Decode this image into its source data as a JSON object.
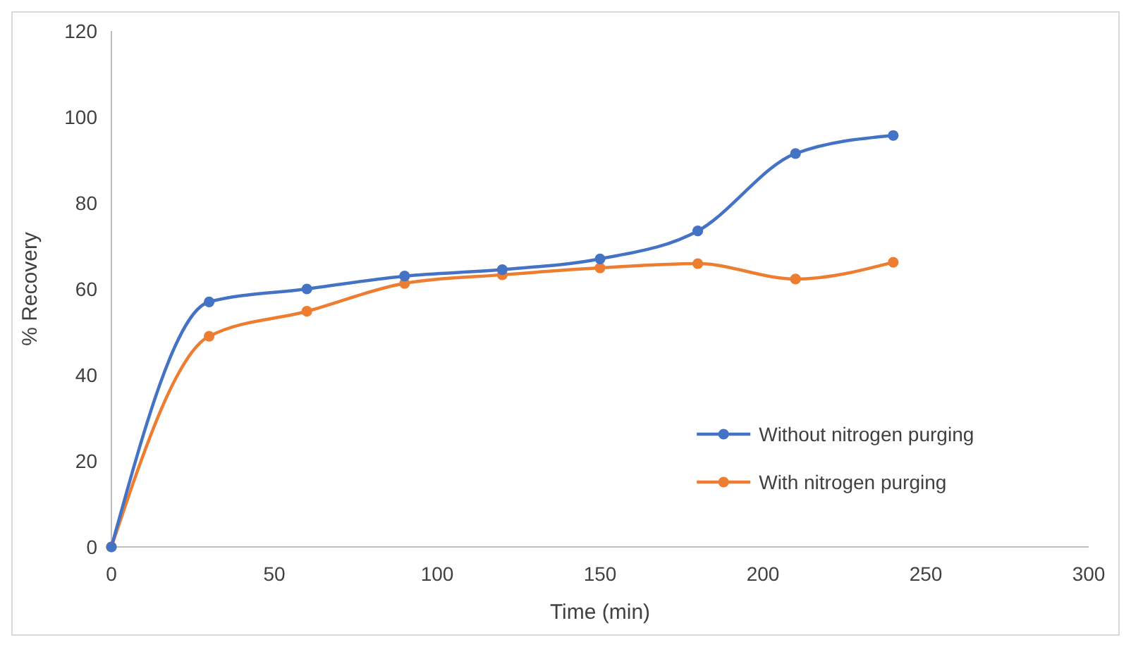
{
  "chart_data": {
    "type": "line",
    "xlabel": "Time (min)",
    "ylabel": "% Recovery",
    "x": [
      0,
      30,
      60,
      90,
      120,
      150,
      180,
      210,
      240
    ],
    "series": [
      {
        "name": "Without nitrogen purging",
        "color": "#4472c4",
        "values": [
          0,
          57,
          60,
          63,
          64.5,
          67,
          73.5,
          91.5,
          95.7
        ]
      },
      {
        "name": "With nitrogen purging",
        "color": "#ed7d31",
        "values": [
          0,
          49,
          54.8,
          61.3,
          63.3,
          64.9,
          65.9,
          62.3,
          66.2
        ]
      }
    ],
    "xlim": [
      0,
      300
    ],
    "xticks": [
      0,
      50,
      100,
      150,
      200,
      250,
      300
    ],
    "ylim": [
      0,
      120
    ],
    "yticks": [
      0,
      20,
      40,
      60,
      80,
      100,
      120
    ],
    "grid": false,
    "legend": "bottom right",
    "marker": "circle",
    "line_style": "solid"
  }
}
